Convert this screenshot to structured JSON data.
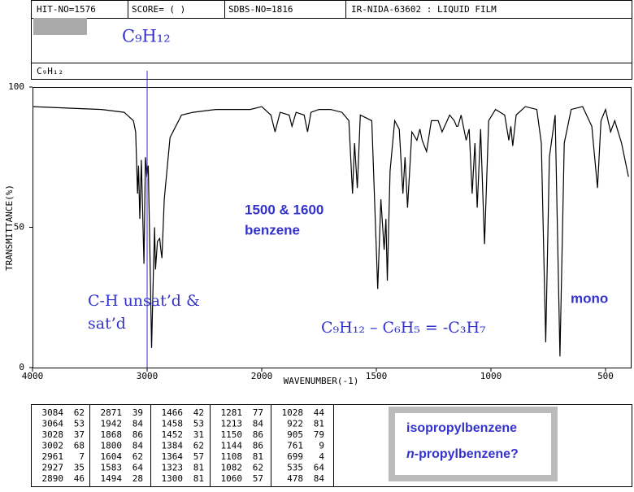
{
  "header": {
    "hit": "HIT-NO=1576",
    "score": "SCORE= (   )",
    "sdbs": "SDBS-NO=1816",
    "source": "IR-NIDA-63602 : LIQUID FILM"
  },
  "formula": "C₉H₁₂",
  "sample_label": "C₉H₁₂",
  "chart_data": {
    "type": "line",
    "x": [
      4000,
      3700,
      3400,
      3200,
      3120,
      3100,
      3084,
      3075,
      3064,
      3050,
      3028,
      3015,
      3002,
      2990,
      2975,
      2961,
      2945,
      2935,
      2927,
      2910,
      2890,
      2880,
      2871,
      2850,
      2800,
      2700,
      2600,
      2400,
      2200,
      2100,
      2000,
      1960,
      1942,
      1920,
      1880,
      1868,
      1850,
      1815,
      1800,
      1785,
      1750,
      1700,
      1650,
      1620,
      1604,
      1595,
      1583,
      1570,
      1520,
      1494,
      1480,
      1466,
      1458,
      1452,
      1440,
      1420,
      1400,
      1384,
      1375,
      1364,
      1345,
      1323,
      1310,
      1300,
      1281,
      1260,
      1230,
      1213,
      1180,
      1160,
      1150,
      1144,
      1130,
      1108,
      1095,
      1082,
      1070,
      1060,
      1045,
      1028,
      1010,
      980,
      940,
      922,
      913,
      905,
      890,
      850,
      800,
      780,
      761,
      745,
      720,
      699,
      680,
      650,
      600,
      560,
      535,
      520,
      500,
      478,
      460,
      430,
      400
    ],
    "values": [
      93,
      92.5,
      92,
      91,
      88,
      84,
      62,
      72,
      53,
      74,
      37,
      75,
      68,
      72,
      40,
      7,
      35,
      50,
      35,
      45,
      46,
      42,
      39,
      60,
      82,
      90,
      91,
      92,
      92,
      92,
      93,
      90,
      84,
      91,
      90,
      86,
      91,
      90,
      84,
      91,
      92,
      92,
      91,
      88,
      62,
      80,
      64,
      90,
      88,
      28,
      60,
      42,
      53,
      31,
      70,
      88,
      85,
      62,
      75,
      57,
      84,
      81,
      85,
      81,
      77,
      88,
      88,
      84,
      90,
      88,
      86,
      86,
      90,
      81,
      85,
      62,
      80,
      57,
      85,
      44,
      88,
      92,
      90,
      81,
      86,
      79,
      90,
      93,
      92,
      80,
      9,
      75,
      90,
      4,
      80,
      92,
      93,
      86,
      64,
      88,
      92,
      84,
      88,
      80,
      68
    ],
    "color": "#000000",
    "xlim": [
      4000,
      400
    ],
    "xticks": [
      4000,
      3000,
      2000,
      1500,
      1000,
      500
    ],
    "ylim": [
      0,
      100
    ],
    "yticks": [
      0,
      50,
      100
    ],
    "xlabel": "WAVENUMBER(-1)",
    "ylabel": "TRANSMITTANCE(%)",
    "marker_color": "#3333cc",
    "annotations": [
      "1500 & 1600",
      "benzene",
      "C-H unsat’d &",
      "sat’d",
      "C₉H₁₂ – C₆H₅ = -C₃H₇",
      "mono"
    ]
  },
  "peak_table": [
    [
      [
        3084,
        62
      ],
      [
        3064,
        53
      ],
      [
        3028,
        37
      ],
      [
        3002,
        68
      ],
      [
        2961,
        7
      ],
      [
        2927,
        35
      ],
      [
        2890,
        46
      ]
    ],
    [
      [
        2871,
        39
      ],
      [
        1942,
        84
      ],
      [
        1868,
        86
      ],
      [
        1800,
        84
      ],
      [
        1604,
        62
      ],
      [
        1583,
        64
      ],
      [
        1494,
        28
      ]
    ],
    [
      [
        1466,
        42
      ],
      [
        1458,
        53
      ],
      [
        1452,
        31
      ],
      [
        1384,
        62
      ],
      [
        1364,
        57
      ],
      [
        1323,
        81
      ],
      [
        1300,
        81
      ]
    ],
    [
      [
        1281,
        77
      ],
      [
        1213,
        84
      ],
      [
        1150,
        86
      ],
      [
        1144,
        86
      ],
      [
        1108,
        81
      ],
      [
        1082,
        62
      ],
      [
        1060,
        57
      ]
    ],
    [
      [
        1028,
        44
      ],
      [
        922,
        81
      ],
      [
        905,
        79
      ],
      [
        761,
        9
      ],
      [
        699,
        4
      ],
      [
        535,
        64
      ],
      [
        478,
        84
      ]
    ]
  ],
  "answer_box": [
    "isopropylbenzene",
    "n-propylbenzene?"
  ]
}
